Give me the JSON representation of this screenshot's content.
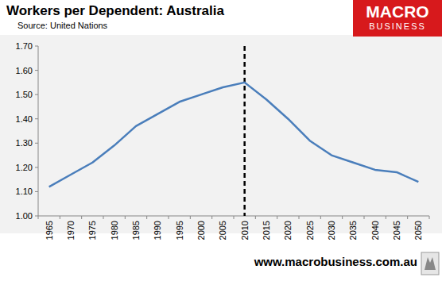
{
  "chart_data": {
    "type": "line",
    "title": "Workers per Dependent: Australia",
    "subtitle": "Source: United Nations",
    "logo_text": [
      "MACRO",
      "BUSINESS"
    ],
    "footer": "www.macrobusiness.com.au",
    "categories": [
      "1965",
      "1970",
      "1975",
      "1980",
      "1985",
      "1990",
      "1995",
      "2000",
      "2005",
      "2010",
      "2015",
      "2020",
      "2025",
      "2030",
      "2035",
      "2040",
      "2045",
      "2050"
    ],
    "values": [
      1.12,
      1.17,
      1.22,
      1.29,
      1.37,
      1.42,
      1.47,
      1.5,
      1.53,
      1.55,
      1.48,
      1.4,
      1.31,
      1.25,
      1.22,
      1.19,
      1.18,
      1.14
    ],
    "color": "#4a7ebb",
    "ylim": [
      1.0,
      1.7
    ],
    "yticks": [
      {
        "value": 1.0,
        "label": "1.00"
      },
      {
        "value": 1.1,
        "label": "1.10"
      },
      {
        "value": 1.2,
        "label": "1.20"
      },
      {
        "value": 1.3,
        "label": "1.30"
      },
      {
        "value": 1.4,
        "label": "1.40"
      },
      {
        "value": 1.5,
        "label": "1.50"
      },
      {
        "value": 1.6,
        "label": "1.60"
      },
      {
        "value": 1.7,
        "label": "1.70"
      }
    ],
    "grid": false,
    "reference_line": {
      "category": "2010",
      "line_style": "dashed"
    }
  }
}
